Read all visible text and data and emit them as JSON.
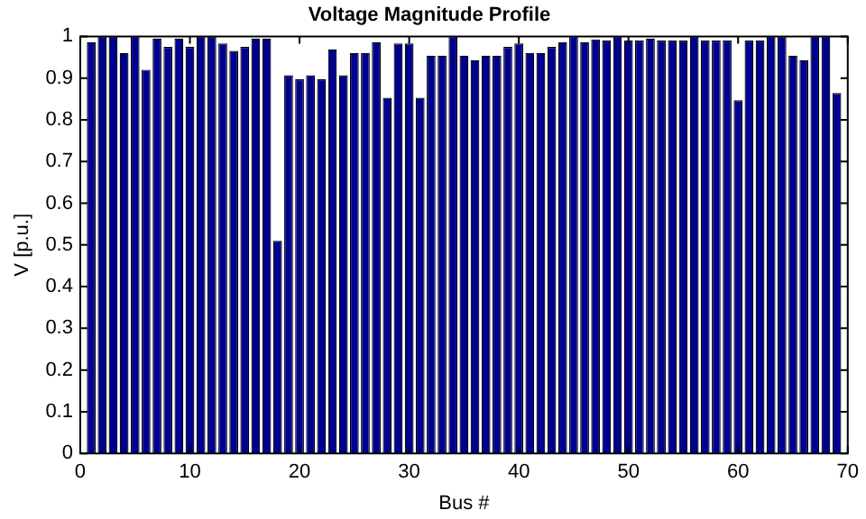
{
  "chart_data": {
    "type": "bar",
    "title": "Voltage Magnitude Profile",
    "xlabel": "Bus #",
    "ylabel": "V [p.u.]",
    "x": [
      1,
      2,
      3,
      4,
      5,
      6,
      7,
      8,
      9,
      10,
      11,
      12,
      13,
      14,
      15,
      16,
      17,
      18,
      19,
      20,
      21,
      22,
      23,
      24,
      25,
      26,
      27,
      28,
      29,
      30,
      31,
      32,
      33,
      34,
      35,
      36,
      37,
      38,
      39,
      40,
      41,
      42,
      43,
      44,
      45,
      46,
      47,
      48,
      49,
      50,
      51,
      52,
      53,
      54,
      55,
      56,
      57,
      58,
      59,
      60,
      61,
      62,
      63,
      64,
      65,
      66,
      67,
      68,
      69
    ],
    "values": [
      0.986,
      1.0,
      1.0,
      0.96,
      1.0,
      0.92,
      0.995,
      0.975,
      0.995,
      0.975,
      1.0,
      1.0,
      0.983,
      0.965,
      0.975,
      0.995,
      0.995,
      0.51,
      0.907,
      0.897,
      0.907,
      0.897,
      0.969,
      0.907,
      0.96,
      0.96,
      0.986,
      0.853,
      0.983,
      0.983,
      0.853,
      0.954,
      0.954,
      1.0,
      0.954,
      0.943,
      0.954,
      0.954,
      0.975,
      0.983,
      0.96,
      0.96,
      0.975,
      0.986,
      1.0,
      0.986,
      0.993,
      0.99,
      1.0,
      0.99,
      0.99,
      0.995,
      0.99,
      0.99,
      0.99,
      1.0,
      0.99,
      0.99,
      0.99,
      0.847,
      0.99,
      0.99,
      1.0,
      1.0,
      0.954,
      0.943,
      1.0,
      1.0,
      0.864
    ],
    "color": "#00008f",
    "xlim": [
      0,
      70
    ],
    "xticks": [
      0,
      10,
      20,
      30,
      40,
      50,
      60,
      70
    ],
    "ylim": [
      0,
      1
    ],
    "yticks": [
      0,
      0.1,
      0.2,
      0.3,
      0.4,
      0.5,
      0.6,
      0.7,
      0.8,
      0.9,
      1
    ],
    "grid": false,
    "legend": false
  }
}
